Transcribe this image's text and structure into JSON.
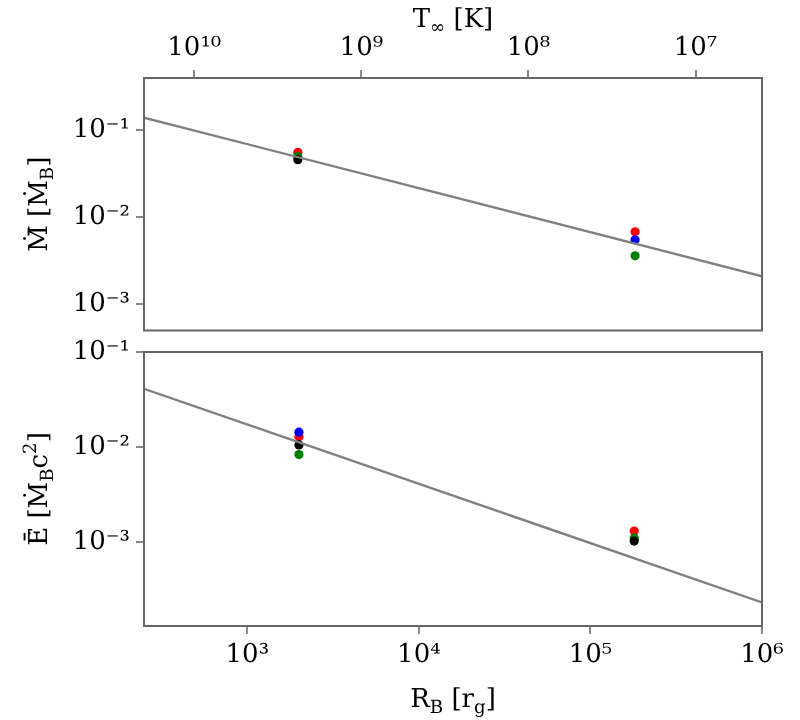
{
  "chart_data": [
    {
      "type": "scatter",
      "xlabel": "T$_{∞}$ [K]",
      "ylabel": "Ṁ̄ [Ṁ$_{B}$]",
      "log": "xy",
      "marker": "circle",
      "xlim": [
        20000000000,
        4000000
      ],
      "xticks": [
        {
          "value": 10000000000,
          "label": "10¹⁰"
        },
        {
          "value": 1000000000,
          "label": "10⁹"
        },
        {
          "value": 100000000,
          "label": "10⁸"
        },
        {
          "value": 10000000,
          "label": "10⁷"
        }
      ],
      "ylim": [
        0.0005,
        0.4
      ],
      "yticks": [
        {
          "value": 0.1,
          "label": "10⁻¹"
        },
        {
          "value": 0.01,
          "label": "10⁻²"
        },
        {
          "value": 0.001,
          "label": "10⁻³"
        }
      ],
      "series": [
        {
          "type": "line",
          "marker": "none",
          "color": "#808080",
          "x": [
            20000000000,
            4000000
          ],
          "values": [
            0.14,
            0.0021
          ]
        },
        {
          "color": "#000000",
          "x": [
            2400000000
          ],
          "values": [
            0.046
          ]
        },
        {
          "color": "#008000",
          "x": [
            2400000000,
            23000000
          ],
          "values": [
            0.05,
            0.0036
          ]
        },
        {
          "color": "#0000ff",
          "x": [
            23000000
          ],
          "values": [
            0.0055
          ]
        },
        {
          "color": "#ff0000",
          "x": [
            2400000000,
            23000000
          ],
          "values": [
            0.056,
            0.0068
          ]
        }
      ]
    },
    {
      "type": "scatter",
      "xlabel": "R$_{B}$ [r$_{g}$]",
      "ylabel": "Ē̇ [Ṁ$_{B}$c$^{2}$]",
      "log": "xy",
      "marker": "circle",
      "xlim": [
        250,
        1000000
      ],
      "xticks": [
        {
          "value": 1000,
          "label": "10³"
        },
        {
          "value": 10000,
          "label": "10⁴"
        },
        {
          "value": 100000,
          "label": "10⁵"
        },
        {
          "value": 1000000,
          "label": "10⁶"
        }
      ],
      "ylim": [
        0.00013,
        0.1
      ],
      "yticks": [
        {
          "value": 0.1,
          "label": "10⁻¹"
        },
        {
          "value": 0.01,
          "label": "10⁻²"
        },
        {
          "value": 0.001,
          "label": "10⁻³"
        }
      ],
      "series": [
        {
          "type": "line",
          "marker": "none",
          "color": "#808080",
          "x": [
            250,
            1000000
          ],
          "values": [
            0.041,
            0.00023
          ]
        },
        {
          "color": "#000000",
          "x": [
            2000,
            180000
          ],
          "values": [
            0.0105,
            0.00102
          ]
        },
        {
          "color": "#008000",
          "x": [
            2000,
            180000
          ],
          "values": [
            0.0083,
            0.0011
          ]
        },
        {
          "color": "#0000ff",
          "x": [
            2000
          ],
          "values": [
            0.0143
          ]
        },
        {
          "color": "#ff0000",
          "x": [
            2000,
            180000
          ],
          "values": [
            0.0128,
            0.0013
          ]
        }
      ]
    }
  ]
}
